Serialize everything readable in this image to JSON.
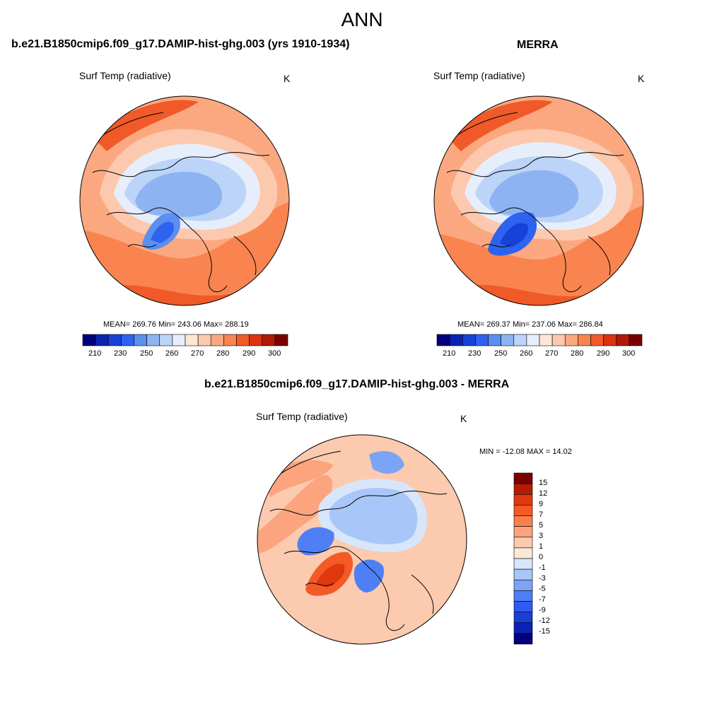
{
  "title": "ANN",
  "colors": {
    "abs_scale": [
      "#00007f",
      "#0a23b4",
      "#1642d8",
      "#2d63ee",
      "#5b8ff0",
      "#8db3f3",
      "#bcd4f8",
      "#e6eefc",
      "#fde6d6",
      "#fcc9ae",
      "#fba880",
      "#f9844f",
      "#f05a28",
      "#d93310",
      "#b01a05",
      "#7a0000"
    ],
    "diff_scale": [
      "#00007f",
      "#0a23b4",
      "#1a3fd8",
      "#2d5cf0",
      "#4f7ff4",
      "#7ca4f5",
      "#a9c6f8",
      "#d8e6fb",
      "#fde8d8",
      "#fccaae",
      "#fba47e",
      "#f9804d",
      "#f45a26",
      "#e0380e",
      "#b61c05",
      "#7a0000"
    ],
    "coast": "#000000"
  },
  "panels": [
    {
      "id": "model",
      "title": "b.e21.B1850cmip6.f09_g17.DAMIP-hist-ghg.003 (yrs 1910-1934)",
      "variable": "Surf Temp (radiative)",
      "units": "K",
      "stats": "MEAN= 269.76  Min= 243.06  Max= 288.19",
      "mean": 269.76,
      "min": 243.06,
      "max": 288.19
    },
    {
      "id": "obs",
      "title": "MERRA",
      "variable": "Surf Temp (radiative)",
      "units": "K",
      "stats": "MEAN= 269.37  Min= 237.06  Max= 286.84",
      "mean": 269.37,
      "min": 237.06,
      "max": 286.84
    },
    {
      "id": "diff",
      "title": "b.e21.B1850cmip6.f09_g17.DAMIP-hist-ghg.003 - MERRA",
      "variable": "Surf Temp (radiative)",
      "units": "K",
      "stats": "MIN = -12.08 MAX =  14.02",
      "min": -12.08,
      "max": 14.02
    }
  ],
  "abs_ticks": [
    "210",
    "230",
    "250",
    "260",
    "270",
    "280",
    "290",
    "300"
  ],
  "diff_ticks": [
    "15",
    "12",
    "9",
    "7",
    "5",
    "3",
    "1",
    "0",
    "-1",
    "-3",
    "-5",
    "-7",
    "-9",
    "-12",
    "-15"
  ]
}
